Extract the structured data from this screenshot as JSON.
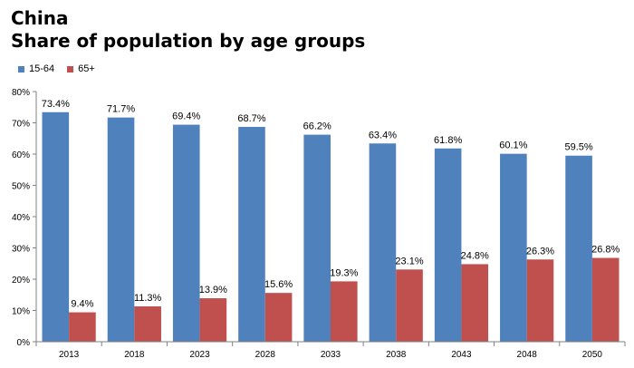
{
  "chart_data": {
    "type": "bar",
    "title": "China",
    "subtitle": "Share of population by age groups",
    "categories": [
      "2013",
      "2018",
      "2023",
      "2028",
      "2033",
      "2038",
      "2043",
      "2048",
      "2050"
    ],
    "series": [
      {
        "name": "15-64",
        "color": "#4F81BD",
        "values": [
          73.4,
          71.7,
          69.4,
          68.7,
          66.2,
          63.4,
          61.8,
          60.1,
          59.5
        ],
        "labels": [
          "73.4%",
          "71.7%",
          "69.4%",
          "68.7%",
          "66.2%",
          "63.4%",
          "61.8%",
          "60.1%",
          "59.5%"
        ]
      },
      {
        "name": "65+",
        "color": "#C0504D",
        "values": [
          9.4,
          11.3,
          13.9,
          15.6,
          19.3,
          23.1,
          24.8,
          26.3,
          26.8
        ],
        "labels": [
          "9.4%",
          "11.3%",
          "13.9%",
          "15.6%",
          "19.3%",
          "23.1%",
          "24.8%",
          "26.3%",
          "26.8%"
        ]
      }
    ],
    "ylim": [
      0,
      80
    ],
    "yticks": [
      "0%",
      "10%",
      "20%",
      "30%",
      "40%",
      "50%",
      "60%",
      "70%",
      "80%"
    ],
    "legend_position": "top-left",
    "grid": false
  }
}
